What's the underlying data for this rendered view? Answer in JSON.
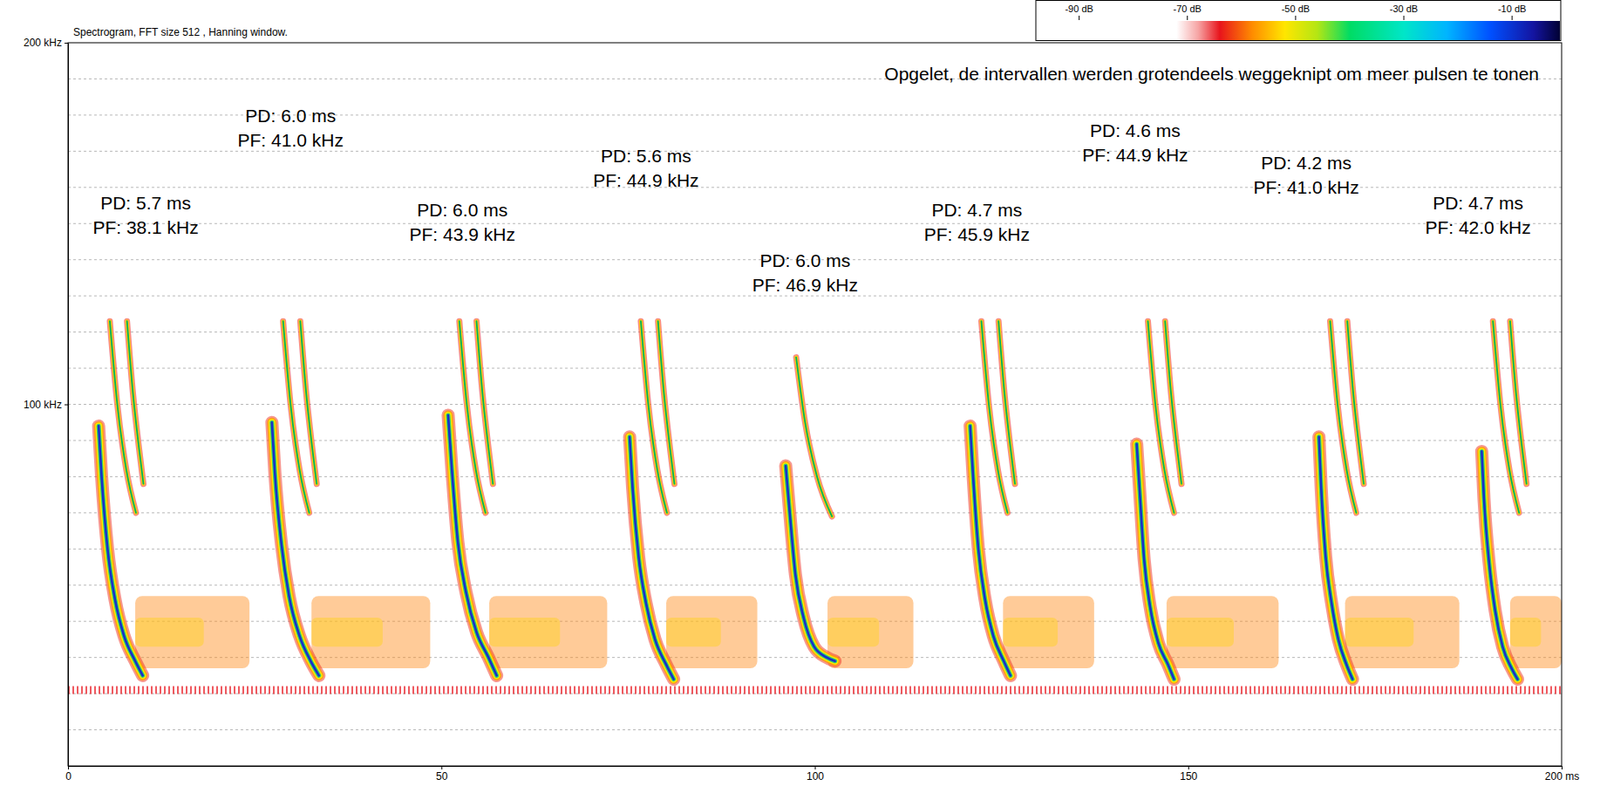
{
  "chart_data": {
    "type": "spectrogram",
    "title": "Spectrogram, FFT size 512 , Hanning window.",
    "subtitle": "Opgelet, de intervallen werden grotendeels weggeknipt om meer pulsen te tonen",
    "xlim": [
      0,
      200
    ],
    "xticks": [
      0,
      50,
      100,
      150,
      {
        "value": 200,
        "label": "200 ms"
      }
    ],
    "ylim": [
      0,
      200
    ],
    "yticks": [
      {
        "value": 100,
        "label": "100 kHz"
      },
      {
        "value": 200,
        "label": "200 kHz"
      }
    ],
    "grid": true,
    "ygrid": [
      10,
      20,
      30,
      40,
      50,
      60,
      70,
      80,
      90,
      100,
      110,
      120,
      130,
      140,
      150,
      160,
      170,
      180,
      190
    ],
    "series": [
      {
        "x": [
          0,
          200
        ],
        "values": [
          21,
          21
        ],
        "color": "#e8141c",
        "line_style": "dotted"
      },
      {
        "x": [
          4.1,
          4.5,
          5.3,
          6.3,
          7.5,
          9.0,
          10.0
        ],
        "values": [
          94,
          80,
          60,
          46,
          36,
          29,
          25
        ],
        "color": "#1a2fc8",
        "line_style": "thick"
      },
      {
        "x": [
          5.6,
          6.6,
          7.8,
          9.1
        ],
        "values": [
          123,
          100,
          82,
          70
        ],
        "color": "#00b060",
        "line_style": "thin"
      },
      {
        "x": [
          7.9,
          8.7,
          9.5,
          10.1
        ],
        "values": [
          123,
          103,
          88,
          78
        ],
        "color": "#00b060",
        "line_style": "thin"
      },
      {
        "x": [
          27.3,
          27.7,
          28.6,
          29.6,
          31.0,
          32.5,
          33.6
        ],
        "values": [
          95,
          81,
          61,
          47,
          36,
          29,
          25
        ],
        "color": "#1a2fc8",
        "line_style": "thick"
      },
      {
        "x": [
          28.8,
          29.8,
          31.0,
          32.3
        ],
        "values": [
          123,
          100,
          82,
          70
        ],
        "color": "#00b060",
        "line_style": "thin"
      },
      {
        "x": [
          31.1,
          31.9,
          32.7,
          33.3
        ],
        "values": [
          123,
          103,
          88,
          78
        ],
        "color": "#00b060",
        "line_style": "thin"
      },
      {
        "x": [
          50.9,
          51.4,
          52.2,
          53.3,
          54.7,
          56.3,
          57.4
        ],
        "values": [
          97,
          82,
          62,
          48,
          37,
          30,
          25
        ],
        "color": "#1a2fc8",
        "line_style": "thick"
      },
      {
        "x": [
          52.4,
          53.4,
          54.6,
          55.9
        ],
        "values": [
          123,
          100,
          82,
          70
        ],
        "color": "#00b060",
        "line_style": "thin"
      },
      {
        "x": [
          54.7,
          55.5,
          56.3,
          56.9
        ],
        "values": [
          123,
          103,
          88,
          78
        ],
        "color": "#00b060",
        "line_style": "thin"
      },
      {
        "x": [
          75.2,
          75.6,
          76.4,
          77.4,
          78.6,
          80.1,
          81.1
        ],
        "values": [
          91,
          77,
          58,
          45,
          35,
          28,
          24
        ],
        "color": "#1a2fc8",
        "line_style": "thick"
      },
      {
        "x": [
          76.7,
          77.7,
          78.9,
          80.2
        ],
        "values": [
          123,
          100,
          82,
          70
        ],
        "color": "#00b060",
        "line_style": "thin"
      },
      {
        "x": [
          79.0,
          79.8,
          80.6,
          81.2
        ],
        "values": [
          123,
          103,
          88,
          78
        ],
        "color": "#00b060",
        "line_style": "thin"
      },
      {
        "x": [
          96.1,
          96.6,
          97.4,
          98.5,
          99.9,
          101.6,
          102.7
        ],
        "values": [
          83,
          71,
          53,
          41,
          33,
          30,
          29
        ],
        "color": "#1a2fc8",
        "line_style": "thick"
      },
      {
        "x": [
          97.5,
          98.7,
          100.3,
          102.3
        ],
        "values": [
          113,
          95,
          80,
          69
        ],
        "color": "#00b060",
        "line_style": "thin"
      },
      {
        "x": [
          120.8,
          121.2,
          121.9,
          122.8,
          123.9,
          125.3,
          126.2
        ],
        "values": [
          94,
          80,
          60,
          46,
          36,
          29,
          25
        ],
        "color": "#1a2fc8",
        "line_style": "thick"
      },
      {
        "x": [
          122.3,
          123.3,
          124.5,
          125.8
        ],
        "values": [
          123,
          100,
          82,
          70
        ],
        "color": "#00b060",
        "line_style": "thin"
      },
      {
        "x": [
          124.6,
          125.4,
          126.2,
          126.8
        ],
        "values": [
          123,
          103,
          88,
          78
        ],
        "color": "#00b060",
        "line_style": "thin"
      },
      {
        "x": [
          143.1,
          143.5,
          144.1,
          144.9,
          146.0,
          147.3,
          148.1
        ],
        "values": [
          89,
          76,
          57,
          44,
          34,
          28,
          24
        ],
        "color": "#1a2fc8",
        "line_style": "thick"
      },
      {
        "x": [
          144.6,
          145.6,
          146.8,
          148.1
        ],
        "values": [
          123,
          100,
          82,
          70
        ],
        "color": "#00b060",
        "line_style": "thin"
      },
      {
        "x": [
          146.9,
          147.7,
          148.5,
          149.1
        ],
        "values": [
          123,
          103,
          88,
          78
        ],
        "color": "#00b060",
        "line_style": "thin"
      },
      {
        "x": [
          167.5,
          167.8,
          168.4,
          169.2,
          170.1,
          171.2,
          172.0
        ],
        "values": [
          91,
          77,
          58,
          45,
          35,
          28,
          24
        ],
        "color": "#1a2fc8",
        "line_style": "thick"
      },
      {
        "x": [
          169.0,
          170.0,
          171.2,
          172.5
        ],
        "values": [
          123,
          100,
          82,
          70
        ],
        "color": "#00b060",
        "line_style": "thin"
      },
      {
        "x": [
          171.3,
          172.1,
          172.9,
          173.5
        ],
        "values": [
          123,
          103,
          88,
          78
        ],
        "color": "#00b060",
        "line_style": "thin"
      },
      {
        "x": [
          189.3,
          189.6,
          190.3,
          191.1,
          192.1,
          193.3,
          194.1
        ],
        "values": [
          87,
          74,
          56,
          43,
          33,
          27,
          24
        ],
        "color": "#1a2fc8",
        "line_style": "thick"
      },
      {
        "x": [
          190.8,
          191.8,
          193.0,
          194.3
        ],
        "values": [
          123,
          100,
          82,
          70
        ],
        "color": "#00b060",
        "line_style": "thin"
      },
      {
        "x": [
          193.1,
          193.9,
          194.7,
          195.3
        ],
        "values": [
          123,
          103,
          88,
          78
        ],
        "color": "#00b060",
        "line_style": "thin"
      }
    ],
    "noise_regions": [
      {
        "x": [
          9.0,
          24.3
        ],
        "y": [
          27,
          47
        ]
      },
      {
        "x": [
          32.6,
          48.5
        ],
        "y": [
          27,
          47
        ]
      },
      {
        "x": [
          56.4,
          72.2
        ],
        "y": [
          27,
          47
        ]
      },
      {
        "x": [
          80.1,
          92.3
        ],
        "y": [
          27,
          47
        ]
      },
      {
        "x": [
          101.7,
          113.2
        ],
        "y": [
          27,
          47
        ]
      },
      {
        "x": [
          125.2,
          137.4
        ],
        "y": [
          27,
          47
        ]
      },
      {
        "x": [
          147.1,
          162.1
        ],
        "y": [
          27,
          47
        ]
      },
      {
        "x": [
          171.0,
          186.3
        ],
        "y": [
          27,
          47
        ]
      },
      {
        "x": [
          193.1,
          200
        ],
        "y": [
          27,
          47
        ]
      }
    ],
    "annotations": [
      {
        "x": 10.4,
        "y": 153,
        "text": [
          "PD: 5.7 ms",
          "PF: 38.1 kHz"
        ]
      },
      {
        "x": 29.8,
        "y": 177,
        "text": [
          "PD: 6.0 ms",
          "PF: 41.0 kHz"
        ]
      },
      {
        "x": 52.8,
        "y": 151,
        "text": [
          "PD: 6.0 ms",
          "PF: 43.9 kHz"
        ]
      },
      {
        "x": 77.4,
        "y": 166,
        "text": [
          "PD: 5.6 ms",
          "PF: 44.9 kHz"
        ]
      },
      {
        "x": 98.7,
        "y": 137,
        "text": [
          "PD: 6.0 ms",
          "PF: 46.9 kHz"
        ]
      },
      {
        "x": 121.7,
        "y": 151,
        "text": [
          "PD: 4.7 ms",
          "PF: 45.9 kHz"
        ]
      },
      {
        "x": 142.9,
        "y": 173,
        "text": [
          "PD: 4.6 ms",
          "PF: 44.9 kHz"
        ]
      },
      {
        "x": 165.8,
        "y": 164,
        "text": [
          "PD: 4.2 ms",
          "PF: 41.0 kHz"
        ]
      },
      {
        "x": 188.8,
        "y": 153,
        "text": [
          "PD: 4.7 ms",
          "PF: 42.0 kHz"
        ]
      }
    ],
    "colorbar": {
      "range": [
        -98,
        -1
      ],
      "ticks": [
        {
          "value": -90,
          "label": "-90 dB"
        },
        {
          "value": -70,
          "label": "-70 dB"
        },
        {
          "value": -50,
          "label": "-50 dB"
        },
        {
          "value": -30,
          "label": "-30 dB"
        },
        {
          "value": -10,
          "label": "-10 dB"
        }
      ],
      "color_stops": [
        {
          "value": -72,
          "color": "#ffffff"
        },
        {
          "value": -68,
          "color": "#f6a4a4"
        },
        {
          "value": -64,
          "color": "#e8141c"
        },
        {
          "value": -58,
          "color": "#ff8c00"
        },
        {
          "value": -52,
          "color": "#ffe600"
        },
        {
          "value": -46,
          "color": "#b4e614"
        },
        {
          "value": -40,
          "color": "#00dc64"
        },
        {
          "value": -30,
          "color": "#00e6c8"
        },
        {
          "value": -22,
          "color": "#00b4ff"
        },
        {
          "value": -14,
          "color": "#0050ff"
        },
        {
          "value": -6,
          "color": "#1414a0"
        },
        {
          "value": -1,
          "color": "#000030"
        }
      ]
    }
  }
}
